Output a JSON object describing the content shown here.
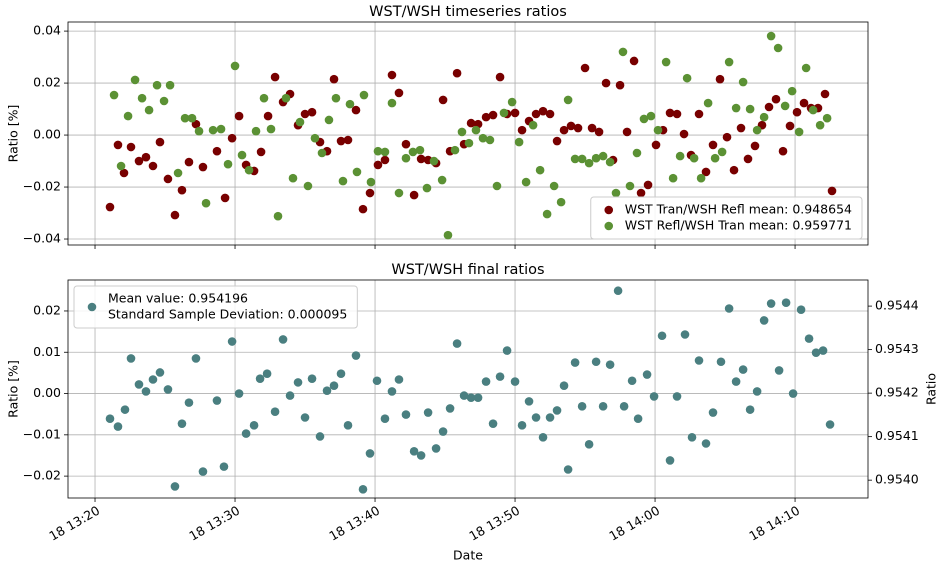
{
  "chart_data": [
    {
      "type": "scatter",
      "title": "WST/WSH timeseries ratios",
      "ylabel": "Ratio [%]",
      "xlim": [
        798.07,
        855.21
      ],
      "ylim": [
        -0.0423,
        0.0435
      ],
      "xticks": [
        800,
        810,
        820,
        830,
        840,
        850
      ],
      "yticks": [
        {
          "value": -0.04,
          "label": "−0.04"
        },
        {
          "value": -0.02,
          "label": "−0.02"
        },
        {
          "value": 0,
          "label": "0.00"
        },
        {
          "value": 0.02,
          "label": "0.02"
        },
        {
          "value": 0.04,
          "label": "0.04"
        }
      ],
      "grid": true,
      "legend": "lower right",
      "series": [
        {
          "name": "WST Tran/WSH Refl mean: 0.948654",
          "color": "#780000",
          "x": [
            801.07,
            801.64,
            802.07,
            802.57,
            803.14,
            803.64,
            804.14,
            804.64,
            805.21,
            805.71,
            806.21,
            806.71,
            807.21,
            807.71,
            808.71,
            809.29,
            809.79,
            810.29,
            810.79,
            811.36,
            811.86,
            812.36,
            812.86,
            813.43,
            813.93,
            814.5,
            815.0,
            815.5,
            816.07,
            816.57,
            817.07,
            817.57,
            818.07,
            818.64,
            819.14,
            819.64,
            820.21,
            820.71,
            821.21,
            821.71,
            822.21,
            822.79,
            823.29,
            823.79,
            824.36,
            824.86,
            825.36,
            825.86,
            826.36,
            826.86,
            827.36,
            827.93,
            828.43,
            828.93,
            829.43,
            830.0,
            830.5,
            831.0,
            831.5,
            832.0,
            832.5,
            833.0,
            833.5,
            834.0,
            834.5,
            835.0,
            835.5,
            836.0,
            836.5,
            837.0,
            837.5,
            838.0,
            838.5,
            839.0,
            839.5,
            840.07,
            840.57,
            841.07,
            841.57,
            842.07,
            842.57,
            843.14,
            843.64,
            844.14,
            844.64,
            845.14,
            845.64,
            846.14,
            846.64,
            847.14,
            847.64,
            848.14,
            848.64,
            849.14,
            849.64,
            850.14,
            850.64,
            851.14,
            851.64,
            852.14,
            852.64
          ],
          "values": [
            -0.0277,
            -0.0038,
            -0.0146,
            -0.0046,
            -0.01,
            -0.0085,
            -0.0119,
            -0.0027,
            -0.0169,
            -0.0308,
            -0.0212,
            -0.0104,
            0.0042,
            -0.0123,
            -0.0062,
            -0.0242,
            -0.0012,
            0.0073,
            -0.0115,
            -0.0138,
            -0.0065,
            0.0073,
            0.0223,
            0.0127,
            0.0158,
            0.0038,
            0.0081,
            0.0088,
            -0.0027,
            -0.0062,
            0.0215,
            -0.0023,
            -0.0019,
            0.0096,
            -0.0285,
            -0.0223,
            -0.0115,
            -0.0096,
            0.0231,
            0.0162,
            -0.0035,
            -0.0231,
            -0.0092,
            -0.0096,
            -0.0108,
            0.0135,
            -0.0062,
            0.0238,
            -0.0035,
            0.0046,
            0.0042,
            0.0069,
            0.0077,
            0.0223,
            0.0081,
            0.0085,
            0.0019,
            0.0054,
            0.0081,
            0.0092,
            0.0081,
            -0.0023,
            0.0019,
            0.0035,
            0.0027,
            0.0258,
            0.0027,
            0.0012,
            0.02,
            -0.0096,
            0.0192,
            0.0012,
            0.0285,
            -0.0223,
            -0.0192,
            -0.0038,
            0.0019,
            0.0085,
            0.0081,
            0.0004,
            -0.0077,
            0.0081,
            -0.0142,
            -0.0038,
            0.0215,
            -0.0008,
            -0.0135,
            0.0027,
            -0.0092,
            -0.0042,
            0.0038,
            0.0108,
            0.0138,
            -0.0062,
            0.0035,
            0.0088,
            0.0123,
            0.0104,
            0.0104,
            0.0158,
            -0.0215
          ]
        },
        {
          "name": "WST Refl/WSH Tran mean: 0.959771",
          "color": "#5b9134",
          "x": [
            801.36,
            801.86,
            802.36,
            802.86,
            803.36,
            803.86,
            804.43,
            804.93,
            805.36,
            805.93,
            806.43,
            806.93,
            807.43,
            807.93,
            808.43,
            809.0,
            809.5,
            810.0,
            810.5,
            811.0,
            811.5,
            812.07,
            812.57,
            813.07,
            813.64,
            814.14,
            814.64,
            815.21,
            815.71,
            816.21,
            816.71,
            817.21,
            817.71,
            818.21,
            818.71,
            819.21,
            819.71,
            820.21,
            820.71,
            821.21,
            821.71,
            822.21,
            822.71,
            823.21,
            823.71,
            824.21,
            824.79,
            825.21,
            825.71,
            826.21,
            826.71,
            827.21,
            827.71,
            828.21,
            828.71,
            829.21,
            829.79,
            830.29,
            830.79,
            831.29,
            831.79,
            832.29,
            832.79,
            833.29,
            833.79,
            834.29,
            834.79,
            835.29,
            835.79,
            836.29,
            836.79,
            837.21,
            837.71,
            838.21,
            838.71,
            839.21,
            839.71,
            840.21,
            840.79,
            841.29,
            841.79,
            842.29,
            842.79,
            843.29,
            843.79,
            844.29,
            844.79,
            845.29,
            845.79,
            846.29,
            846.79,
            847.29,
            847.79,
            848.29,
            848.79,
            849.29,
            849.79,
            850.29,
            850.79,
            851.29,
            851.79,
            852.29
          ],
          "values": [
            0.0154,
            -0.0119,
            0.0073,
            0.0212,
            0.0142,
            0.0096,
            0.0192,
            0.0131,
            0.0192,
            -0.0146,
            0.0065,
            0.0065,
            0.0015,
            -0.0262,
            0.0019,
            0.0023,
            -0.0112,
            0.0266,
            -0.0077,
            -0.0135,
            0.0015,
            0.0142,
            0.0023,
            -0.0312,
            0.0142,
            -0.0166,
            0.005,
            -0.0196,
            -0.0012,
            -0.0069,
            0.0058,
            0.0142,
            -0.0177,
            0.0119,
            -0.0142,
            0.0154,
            -0.0181,
            -0.0062,
            -0.0065,
            0.0123,
            -0.0223,
            -0.0089,
            -0.0065,
            -0.0058,
            -0.0204,
            -0.01,
            -0.0173,
            -0.0385,
            -0.0058,
            0.0012,
            -0.0031,
            0.0019,
            -0.0012,
            -0.0019,
            -0.0196,
            0.0085,
            0.0127,
            -0.0027,
            -0.0181,
            0.0038,
            -0.0135,
            -0.0304,
            -0.0196,
            -0.0258,
            0.0135,
            -0.0092,
            -0.0092,
            -0.0108,
            -0.0089,
            -0.0081,
            -0.0104,
            -0.0223,
            0.032,
            -0.0196,
            -0.0069,
            0.0062,
            0.0073,
            0.0019,
            0.0281,
            -0.0166,
            -0.0081,
            0.0219,
            -0.0089,
            -0.0166,
            0.0123,
            -0.0089,
            -0.0065,
            0.0281,
            0.0104,
            0.0204,
            0.01,
            0.0019,
            0.0069,
            0.0381,
            0.0335,
            0.0112,
            0.0169,
            0.0012,
            0.0258,
            0.0096,
            0.0038,
            0.0065
          ]
        }
      ]
    },
    {
      "type": "scatter",
      "title": "WST/WSH final ratios",
      "xlabel": "Date",
      "ylabel": "Ratio [%]",
      "y2label": "Ratio",
      "xlim": [
        798.07,
        855.21
      ],
      "ylim": [
        -0.0253,
        0.0275
      ],
      "y2lim": [
        0.953959,
        0.95446
      ],
      "xticks": [
        {
          "value": 800,
          "label": "18 13:20"
        },
        {
          "value": 810,
          "label": "18 13:30"
        },
        {
          "value": 820,
          "label": "18 13:40"
        },
        {
          "value": 830,
          "label": "18 13:50"
        },
        {
          "value": 840,
          "label": "18 14:00"
        },
        {
          "value": 850,
          "label": "18 14:10"
        }
      ],
      "yticks": [
        {
          "value": -0.02,
          "label": "−0.02"
        },
        {
          "value": -0.01,
          "label": "−0.01"
        },
        {
          "value": 0,
          "label": "0.00"
        },
        {
          "value": 0.01,
          "label": "0.01"
        },
        {
          "value": 0.02,
          "label": "0.02"
        }
      ],
      "y2ticks": [
        {
          "value": 0.954,
          "label": "0.9540"
        },
        0.9541,
        0.9542,
        0.9543,
        0.9544
      ],
      "grid": true,
      "legend": "upper left",
      "series": [
        {
          "name": [
            "Mean value: 0.954196",
            "Standard Sample Deviation: 0.000095"
          ],
          "color": "#4a7f80",
          "x": [
            801.07,
            801.64,
            802.14,
            802.57,
            803.14,
            803.64,
            804.14,
            804.64,
            805.21,
            805.71,
            806.21,
            806.71,
            807.21,
            807.71,
            808.71,
            809.21,
            809.79,
            810.29,
            810.79,
            811.36,
            811.79,
            812.29,
            812.86,
            813.43,
            813.93,
            814.5,
            815.0,
            815.5,
            816.07,
            816.57,
            817.07,
            817.57,
            818.07,
            818.64,
            819.14,
            819.64,
            820.14,
            820.71,
            821.21,
            821.71,
            822.21,
            822.79,
            823.29,
            823.79,
            824.36,
            824.86,
            825.36,
            825.86,
            826.36,
            826.86,
            827.36,
            827.93,
            828.43,
            828.93,
            829.43,
            830.0,
            830.5,
            831.0,
            831.5,
            832.0,
            832.5,
            833.0,
            833.5,
            833.79,
            834.29,
            834.79,
            835.29,
            835.79,
            836.29,
            836.79,
            837.36,
            837.79,
            838.36,
            838.79,
            839.43,
            839.93,
            840.5,
            841.07,
            841.57,
            842.14,
            842.64,
            843.14,
            843.64,
            844.14,
            844.71,
            845.29,
            845.79,
            846.29,
            846.79,
            847.29,
            847.79,
            848.29,
            848.86,
            849.36,
            849.86,
            850.43,
            851.0,
            851.5,
            852.0,
            852.5
          ],
          "values": [
            -0.0061,
            -0.008,
            -0.0039,
            0.0085,
            0.0022,
            0.0005,
            0.0034,
            0.0051,
            0.001,
            -0.0225,
            -0.0073,
            -0.0022,
            0.0085,
            -0.0189,
            -0.0017,
            -0.0177,
            0.0126,
            0.0,
            -0.0097,
            -0.0077,
            0.0036,
            0.0048,
            -0.0044,
            0.0131,
            -0.0005,
            0.0027,
            -0.0058,
            0.0036,
            -0.0104,
            0.0007,
            0.0019,
            0.0048,
            -0.0077,
            0.0092,
            -0.0232,
            -0.0145,
            0.0031,
            -0.0061,
            0.0005,
            0.0034,
            -0.0051,
            -0.014,
            -0.015,
            -0.0046,
            -0.0133,
            -0.0092,
            -0.0036,
            0.0121,
            -0.0005,
            -0.001,
            -0.001,
            0.0029,
            -0.0073,
            0.0041,
            0.0104,
            0.0029,
            -0.0077,
            -0.0019,
            -0.0058,
            -0.0106,
            -0.0058,
            -0.0041,
            0.0019,
            -0.0184,
            0.0075,
            -0.0031,
            -0.0123,
            0.0077,
            -0.0031,
            0.007,
            0.0249,
            -0.0031,
            0.0031,
            -0.0061,
            0.0046,
            -0.0007,
            0.014,
            -0.0162,
            -0.0007,
            0.0143,
            -0.0106,
            0.008,
            -0.0121,
            -0.0046,
            0.0077,
            0.0206,
            0.0029,
            0.0058,
            -0.0039,
            0.0005,
            0.0177,
            0.0218,
            0.0056,
            0.022,
            0.0,
            0.0203,
            0.0133,
            0.0099,
            0.0104,
            -0.0075
          ]
        }
      ]
    }
  ]
}
